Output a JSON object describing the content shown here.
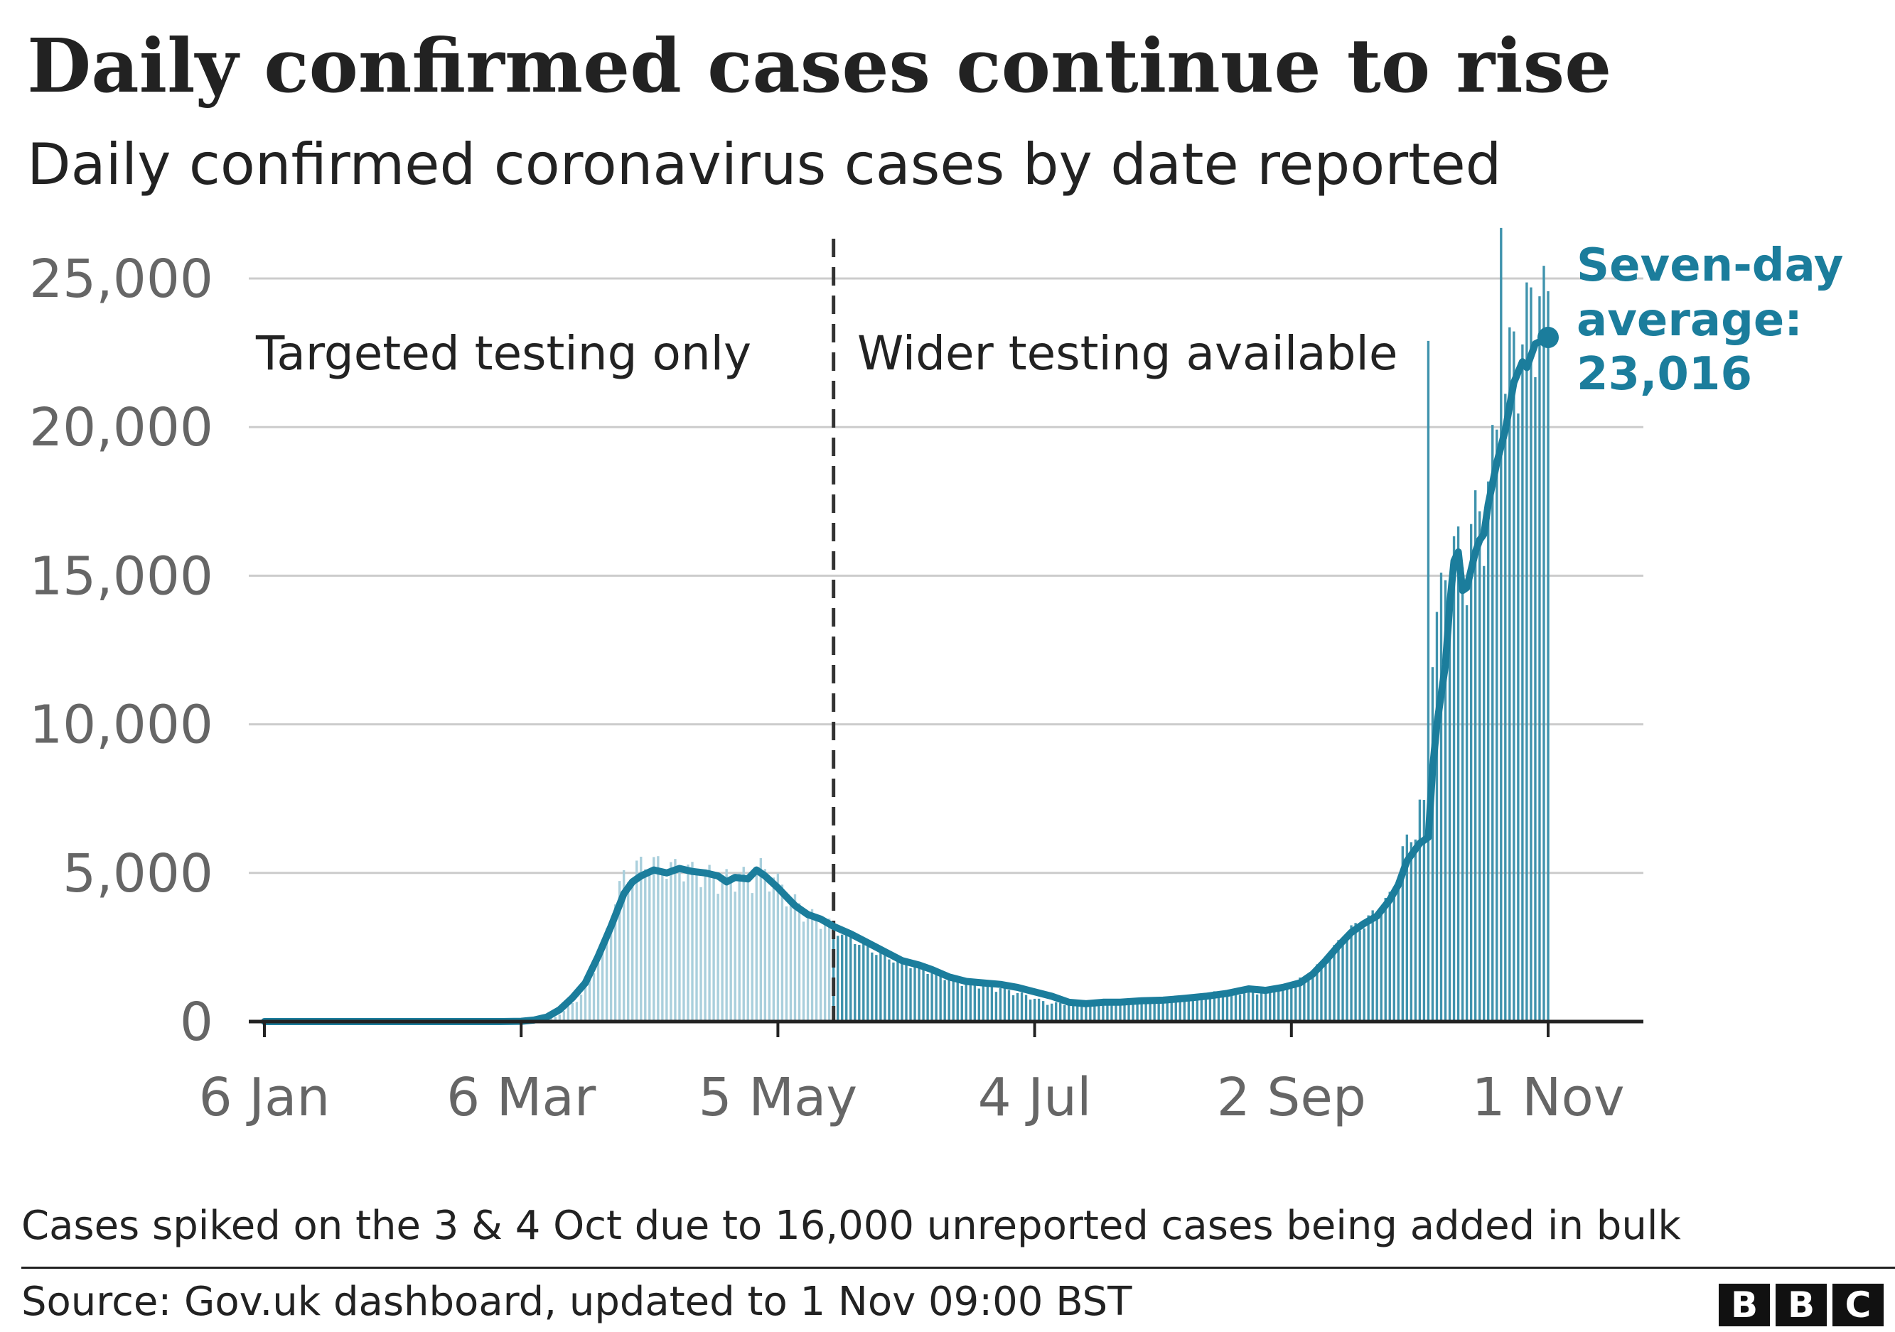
{
  "title": "Daily confirmed cases continue to rise",
  "subtitle": "Daily confirmed coronavirus cases by date reported",
  "note": "Cases spiked on the 3 & 4 Oct due to 16,000 unreported cases being added in bulk",
  "source": "Source: Gov.uk dashboard, updated to 1 Nov 09:00 BST",
  "logo": [
    "B",
    "B",
    "C"
  ],
  "colors": {
    "line": "#1b7d9c",
    "bar_dark": "#3f93ad",
    "bar_light": "#a9cfdc",
    "grid": "#cccccc",
    "axis": "#222222",
    "tick_text": "#666666",
    "divider": "#333333"
  },
  "chart_data": {
    "type": "bar",
    "title": "Daily confirmed cases continue to rise",
    "subtitle": "Daily confirmed coronavirus cases by date reported",
    "xlabel": "",
    "ylabel": "",
    "ylim": [
      0,
      27500
    ],
    "yticks": [
      0,
      5000,
      10000,
      15000,
      20000,
      25000
    ],
    "ytick_labels": [
      "0",
      "5,000",
      "10,000",
      "15,000",
      "20,000",
      "25,000"
    ],
    "x_range_days": [
      0,
      300
    ],
    "xticks": [
      0,
      60,
      120,
      180,
      240,
      300
    ],
    "xtick_labels": [
      "6 Jan",
      "6 Mar",
      "5 May",
      "4 Jul",
      "2 Sep",
      "1 Nov"
    ],
    "divider_day": 133,
    "annotations": {
      "left_region": "Targeted testing only",
      "right_region": "Wider testing available",
      "avg_label_1": "Seven-day",
      "avg_label_2": "average:",
      "avg_value": "23,016"
    },
    "daily_anchors_day_cases": [
      [
        55,
        0
      ],
      [
        60,
        20
      ],
      [
        65,
        50
      ],
      [
        68,
        150
      ],
      [
        70,
        350
      ],
      [
        73,
        700
      ],
      [
        75,
        1100
      ],
      [
        78,
        2000
      ],
      [
        80,
        2900
      ],
      [
        82,
        4000
      ],
      [
        84,
        4700
      ],
      [
        86,
        4900
      ],
      [
        89,
        5200
      ],
      [
        92,
        5100
      ],
      [
        95,
        5000
      ],
      [
        98,
        5000
      ],
      [
        100,
        4900
      ],
      [
        104,
        4800
      ],
      [
        107,
        4600
      ],
      [
        110,
        4800
      ],
      [
        113,
        4700
      ],
      [
        116,
        5000
      ],
      [
        119,
        4700
      ],
      [
        122,
        4200
      ],
      [
        126,
        3600
      ],
      [
        130,
        3300
      ],
      [
        133,
        3100
      ],
      [
        138,
        2700
      ],
      [
        143,
        2300
      ],
      [
        148,
        2000
      ],
      [
        153,
        1800
      ],
      [
        158,
        1550
      ],
      [
        163,
        1300
      ],
      [
        168,
        1200
      ],
      [
        173,
        1050
      ],
      [
        178,
        850
      ],
      [
        183,
        600
      ],
      [
        188,
        580
      ],
      [
        193,
        600
      ],
      [
        198,
        620
      ],
      [
        203,
        680
      ],
      [
        208,
        720
      ],
      [
        213,
        780
      ],
      [
        218,
        830
      ],
      [
        223,
        950
      ],
      [
        228,
        1000
      ],
      [
        233,
        1000
      ],
      [
        238,
        1150
      ],
      [
        243,
        1400
      ],
      [
        248,
        2000
      ],
      [
        253,
        2900
      ],
      [
        258,
        3300
      ],
      [
        263,
        4000
      ],
      [
        266,
        5500
      ],
      [
        268,
        6000
      ],
      [
        270,
        7000
      ],
      [
        271,
        6800
      ],
      [
        272,
        7400
      ],
      [
        273,
        12800
      ],
      [
        274,
        13000
      ],
      [
        276,
        14500
      ],
      [
        278,
        15500
      ],
      [
        280,
        14800
      ],
      [
        282,
        16000
      ],
      [
        284,
        16500
      ],
      [
        286,
        17500
      ],
      [
        288,
        19000
      ],
      [
        290,
        20500
      ],
      [
        292,
        22000
      ],
      [
        294,
        22300
      ],
      [
        296,
        23000
      ],
      [
        298,
        23400
      ],
      [
        300,
        23000
      ]
    ],
    "daily_spikes_day_cases": [
      [
        272,
        22900
      ],
      [
        289,
        26700
      ],
      [
        296,
        24700
      ],
      [
        298,
        24400
      ]
    ],
    "seven_day_average_day_cases": [
      [
        0,
        0
      ],
      [
        55,
        0
      ],
      [
        60,
        10
      ],
      [
        63,
        50
      ],
      [
        66,
        150
      ],
      [
        69,
        400
      ],
      [
        72,
        800
      ],
      [
        75,
        1300
      ],
      [
        78,
        2200
      ],
      [
        81,
        3200
      ],
      [
        84,
        4300
      ],
      [
        86,
        4700
      ],
      [
        88,
        4900
      ],
      [
        91,
        5100
      ],
      [
        94,
        5000
      ],
      [
        97,
        5150
      ],
      [
        100,
        5050
      ],
      [
        103,
        5000
      ],
      [
        106,
        4900
      ],
      [
        108,
        4700
      ],
      [
        110,
        4850
      ],
      [
        113,
        4800
      ],
      [
        115,
        5100
      ],
      [
        117,
        4900
      ],
      [
        120,
        4500
      ],
      [
        122,
        4200
      ],
      [
        124,
        3900
      ],
      [
        127,
        3600
      ],
      [
        130,
        3450
      ],
      [
        133,
        3200
      ],
      [
        137,
        2950
      ],
      [
        141,
        2650
      ],
      [
        145,
        2350
      ],
      [
        149,
        2050
      ],
      [
        153,
        1900
      ],
      [
        156,
        1750
      ],
      [
        160,
        1500
      ],
      [
        164,
        1350
      ],
      [
        168,
        1300
      ],
      [
        172,
        1250
      ],
      [
        176,
        1150
      ],
      [
        180,
        1000
      ],
      [
        184,
        850
      ],
      [
        188,
        650
      ],
      [
        192,
        600
      ],
      [
        196,
        650
      ],
      [
        200,
        650
      ],
      [
        205,
        700
      ],
      [
        210,
        720
      ],
      [
        215,
        780
      ],
      [
        220,
        850
      ],
      [
        225,
        950
      ],
      [
        230,
        1100
      ],
      [
        234,
        1050
      ],
      [
        238,
        1150
      ],
      [
        242,
        1300
      ],
      [
        245,
        1600
      ],
      [
        248,
        2050
      ],
      [
        251,
        2550
      ],
      [
        254,
        3000
      ],
      [
        257,
        3300
      ],
      [
        260,
        3550
      ],
      [
        263,
        4100
      ],
      [
        265,
        4600
      ],
      [
        267,
        5400
      ],
      [
        268,
        5600
      ],
      [
        270,
        6000
      ],
      [
        272,
        6200
      ],
      [
        273,
        8500
      ],
      [
        274,
        10000
      ],
      [
        276,
        12000
      ],
      [
        277,
        14000
      ],
      [
        278,
        15500
      ],
      [
        279,
        15800
      ],
      [
        280,
        14500
      ],
      [
        281,
        14600
      ],
      [
        283,
        15800
      ],
      [
        284,
        16200
      ],
      [
        285,
        16400
      ],
      [
        286,
        17400
      ],
      [
        288,
        18800
      ],
      [
        290,
        19900
      ],
      [
        292,
        21500
      ],
      [
        294,
        22200
      ],
      [
        295,
        22000
      ],
      [
        297,
        22800
      ],
      [
        300,
        23016
      ]
    ],
    "last_average": 23016
  }
}
